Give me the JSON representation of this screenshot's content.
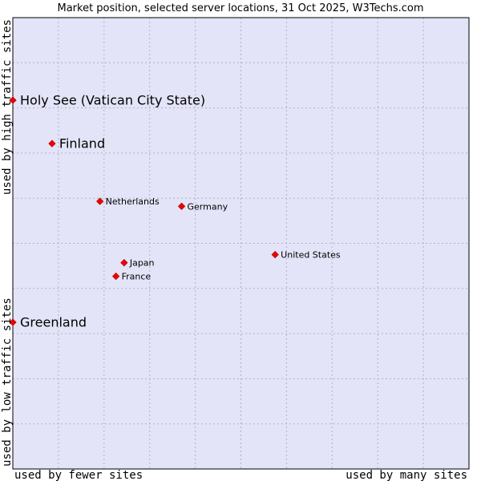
{
  "chart_data": {
    "type": "scatter",
    "title": "Market position, selected server locations, 31 Oct 2025, W3Techs.com",
    "xlabel_left": "used by fewer sites",
    "xlabel_right": "used by many sites",
    "ylabel_bottom": "used by low traffic sites",
    "ylabel_top": "used by high traffic sites",
    "xlim": [
      0,
      100
    ],
    "ylim": [
      0,
      100
    ],
    "grid": true,
    "colors": {
      "plot_background": "#e4e4f8",
      "grid": "#b0b0c8",
      "marker": "#ee0000",
      "border": "#000000"
    },
    "points": [
      {
        "label": "Holy See (Vatican City State)",
        "x": 0.0,
        "y": 81.7,
        "emphasis": true
      },
      {
        "label": "Finland",
        "x": 8.6,
        "y": 72.1,
        "emphasis": true
      },
      {
        "label": "Netherlands",
        "x": 19.1,
        "y": 59.3,
        "emphasis": false
      },
      {
        "label": "Germany",
        "x": 37.0,
        "y": 58.2,
        "emphasis": false
      },
      {
        "label": "United States",
        "x": 57.5,
        "y": 47.5,
        "emphasis": false
      },
      {
        "label": "Japan",
        "x": 24.4,
        "y": 45.7,
        "emphasis": false
      },
      {
        "label": "France",
        "x": 22.6,
        "y": 42.7,
        "emphasis": false
      },
      {
        "label": "Greenland",
        "x": 0.0,
        "y": 32.5,
        "emphasis": true
      }
    ]
  }
}
